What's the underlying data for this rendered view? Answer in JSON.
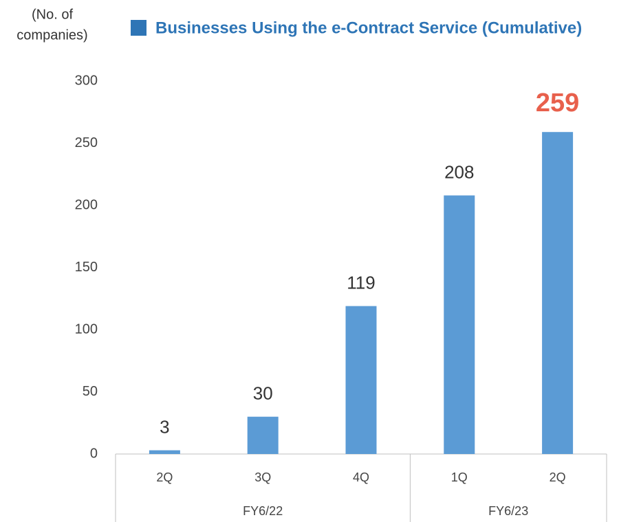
{
  "chart_data": {
    "type": "bar",
    "title": "Businesses Using the e-Contract Service (Cumulative)",
    "y_axis_label": [
      "(No. of",
      "companies)"
    ],
    "groups": [
      {
        "name": "FY6/22",
        "categories": [
          "2Q",
          "3Q",
          "4Q"
        ]
      },
      {
        "name": "FY6/23",
        "categories": [
          "1Q",
          "2Q"
        ]
      }
    ],
    "values": [
      3,
      30,
      119,
      208,
      259
    ],
    "color": "#5b9bd5",
    "title_color": "#2e75b6",
    "legend_color": "#2e75b6",
    "highlight": {
      "index": 4,
      "color": "#e8604c"
    },
    "ylim": [
      0,
      300
    ],
    "yticks": [
      0,
      50,
      100,
      150,
      200,
      250,
      300
    ],
    "grid": false
  }
}
